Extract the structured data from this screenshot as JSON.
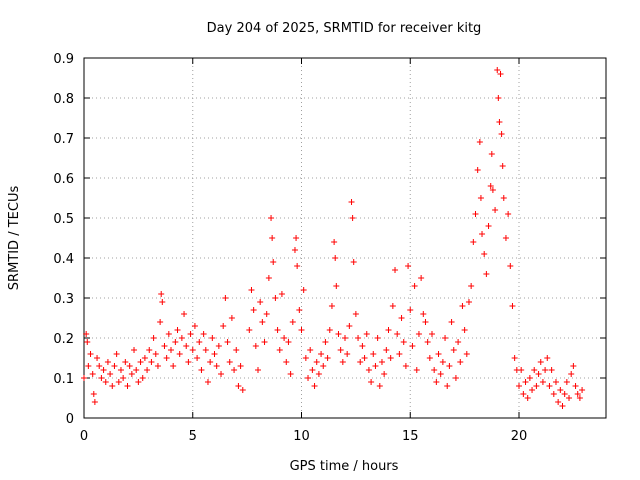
{
  "chart_data": {
    "type": "scatter",
    "title": "Day 204 of 2025, SRMTID for receiver kitg",
    "xlabel": "GPS time / hours",
    "ylabel": "SRMTID / TECUs",
    "xlim": [
      0,
      24
    ],
    "ylim": [
      0,
      0.9
    ],
    "xticks": [
      0,
      5,
      10,
      15,
      20
    ],
    "yticks": [
      0,
      0.1,
      0.2,
      0.3,
      0.4,
      0.5,
      0.6,
      0.7,
      0.8,
      0.9
    ],
    "xtick_labels": [
      "0",
      "5",
      "10",
      "15",
      "20"
    ],
    "ytick_labels": [
      "0",
      "0.1",
      "0.2",
      "0.3",
      "0.4",
      "0.5",
      "0.6",
      "0.7",
      "0.8",
      "0.9"
    ],
    "grid": true,
    "marker": "+",
    "color": "#ff0000",
    "series": [
      {
        "name": "SRMTID",
        "points": [
          [
            0.0,
            0.1
          ],
          [
            0.1,
            0.21
          ],
          [
            0.15,
            0.19
          ],
          [
            0.2,
            0.13
          ],
          [
            0.3,
            0.16
          ],
          [
            0.4,
            0.11
          ],
          [
            0.45,
            0.06
          ],
          [
            0.5,
            0.04
          ],
          [
            0.6,
            0.15
          ],
          [
            0.7,
            0.13
          ],
          [
            0.8,
            0.1
          ],
          [
            0.9,
            0.12
          ],
          [
            1.0,
            0.09
          ],
          [
            1.1,
            0.14
          ],
          [
            1.2,
            0.11
          ],
          [
            1.3,
            0.08
          ],
          [
            1.4,
            0.13
          ],
          [
            1.5,
            0.16
          ],
          [
            1.6,
            0.09
          ],
          [
            1.7,
            0.12
          ],
          [
            1.8,
            0.1
          ],
          [
            1.9,
            0.14
          ],
          [
            2.0,
            0.08
          ],
          [
            2.1,
            0.13
          ],
          [
            2.2,
            0.11
          ],
          [
            2.3,
            0.17
          ],
          [
            2.4,
            0.12
          ],
          [
            2.5,
            0.09
          ],
          [
            2.6,
            0.14
          ],
          [
            2.7,
            0.1
          ],
          [
            2.8,
            0.15
          ],
          [
            2.9,
            0.12
          ],
          [
            3.0,
            0.17
          ],
          [
            3.1,
            0.14
          ],
          [
            3.2,
            0.2
          ],
          [
            3.3,
            0.16
          ],
          [
            3.4,
            0.13
          ],
          [
            3.5,
            0.24
          ],
          [
            3.55,
            0.31
          ],
          [
            3.6,
            0.29
          ],
          [
            3.7,
            0.18
          ],
          [
            3.8,
            0.15
          ],
          [
            3.9,
            0.21
          ],
          [
            4.0,
            0.17
          ],
          [
            4.1,
            0.13
          ],
          [
            4.2,
            0.19
          ],
          [
            4.3,
            0.22
          ],
          [
            4.4,
            0.16
          ],
          [
            4.5,
            0.2
          ],
          [
            4.6,
            0.26
          ],
          [
            4.7,
            0.18
          ],
          [
            4.8,
            0.14
          ],
          [
            4.9,
            0.21
          ],
          [
            5.0,
            0.17
          ],
          [
            5.1,
            0.23
          ],
          [
            5.2,
            0.15
          ],
          [
            5.3,
            0.19
          ],
          [
            5.4,
            0.12
          ],
          [
            5.5,
            0.21
          ],
          [
            5.6,
            0.17
          ],
          [
            5.7,
            0.09
          ],
          [
            5.8,
            0.14
          ],
          [
            5.9,
            0.2
          ],
          [
            6.0,
            0.16
          ],
          [
            6.1,
            0.13
          ],
          [
            6.2,
            0.18
          ],
          [
            6.3,
            0.11
          ],
          [
            6.4,
            0.23
          ],
          [
            6.5,
            0.3
          ],
          [
            6.6,
            0.19
          ],
          [
            6.7,
            0.14
          ],
          [
            6.8,
            0.25
          ],
          [
            6.9,
            0.12
          ],
          [
            7.0,
            0.17
          ],
          [
            7.1,
            0.08
          ],
          [
            7.2,
            0.13
          ],
          [
            7.3,
            0.07
          ],
          [
            7.6,
            0.22
          ],
          [
            7.7,
            0.32
          ],
          [
            7.8,
            0.27
          ],
          [
            7.9,
            0.18
          ],
          [
            8.0,
            0.12
          ],
          [
            8.1,
            0.29
          ],
          [
            8.2,
            0.24
          ],
          [
            8.3,
            0.19
          ],
          [
            8.4,
            0.26
          ],
          [
            8.5,
            0.35
          ],
          [
            8.6,
            0.5
          ],
          [
            8.65,
            0.45
          ],
          [
            8.7,
            0.39
          ],
          [
            8.8,
            0.3
          ],
          [
            8.9,
            0.22
          ],
          [
            9.0,
            0.17
          ],
          [
            9.1,
            0.31
          ],
          [
            9.2,
            0.2
          ],
          [
            9.3,
            0.14
          ],
          [
            9.4,
            0.19
          ],
          [
            9.5,
            0.11
          ],
          [
            9.6,
            0.24
          ],
          [
            9.7,
            0.42
          ],
          [
            9.75,
            0.45
          ],
          [
            9.8,
            0.38
          ],
          [
            9.9,
            0.27
          ],
          [
            10.0,
            0.22
          ],
          [
            10.1,
            0.32
          ],
          [
            10.2,
            0.15
          ],
          [
            10.3,
            0.1
          ],
          [
            10.4,
            0.17
          ],
          [
            10.5,
            0.12
          ],
          [
            10.6,
            0.08
          ],
          [
            10.7,
            0.14
          ],
          [
            10.8,
            0.11
          ],
          [
            10.9,
            0.16
          ],
          [
            11.0,
            0.13
          ],
          [
            11.1,
            0.19
          ],
          [
            11.2,
            0.15
          ],
          [
            11.3,
            0.22
          ],
          [
            11.4,
            0.28
          ],
          [
            11.5,
            0.44
          ],
          [
            11.55,
            0.4
          ],
          [
            11.6,
            0.33
          ],
          [
            11.7,
            0.21
          ],
          [
            11.8,
            0.17
          ],
          [
            11.9,
            0.14
          ],
          [
            12.0,
            0.2
          ],
          [
            12.1,
            0.16
          ],
          [
            12.2,
            0.23
          ],
          [
            12.3,
            0.54
          ],
          [
            12.35,
            0.5
          ],
          [
            12.4,
            0.39
          ],
          [
            12.5,
            0.26
          ],
          [
            12.6,
            0.2
          ],
          [
            12.7,
            0.14
          ],
          [
            12.8,
            0.18
          ],
          [
            12.9,
            0.15
          ],
          [
            13.0,
            0.21
          ],
          [
            13.1,
            0.12
          ],
          [
            13.2,
            0.09
          ],
          [
            13.3,
            0.16
          ],
          [
            13.4,
            0.13
          ],
          [
            13.5,
            0.2
          ],
          [
            13.6,
            0.08
          ],
          [
            13.7,
            0.14
          ],
          [
            13.8,
            0.11
          ],
          [
            13.9,
            0.17
          ],
          [
            14.0,
            0.22
          ],
          [
            14.1,
            0.15
          ],
          [
            14.2,
            0.28
          ],
          [
            14.3,
            0.37
          ],
          [
            14.4,
            0.21
          ],
          [
            14.5,
            0.16
          ],
          [
            14.6,
            0.25
          ],
          [
            14.7,
            0.19
          ],
          [
            14.8,
            0.13
          ],
          [
            14.9,
            0.38
          ],
          [
            15.0,
            0.27
          ],
          [
            15.1,
            0.18
          ],
          [
            15.2,
            0.33
          ],
          [
            15.3,
            0.12
          ],
          [
            15.4,
            0.21
          ],
          [
            15.5,
            0.35
          ],
          [
            15.6,
            0.26
          ],
          [
            15.7,
            0.24
          ],
          [
            15.8,
            0.19
          ],
          [
            15.9,
            0.15
          ],
          [
            16.0,
            0.21
          ],
          [
            16.1,
            0.12
          ],
          [
            16.2,
            0.09
          ],
          [
            16.3,
            0.16
          ],
          [
            16.4,
            0.11
          ],
          [
            16.5,
            0.14
          ],
          [
            16.6,
            0.2
          ],
          [
            16.7,
            0.08
          ],
          [
            16.8,
            0.13
          ],
          [
            16.9,
            0.24
          ],
          [
            17.0,
            0.17
          ],
          [
            17.1,
            0.1
          ],
          [
            17.2,
            0.19
          ],
          [
            17.3,
            0.14
          ],
          [
            17.4,
            0.28
          ],
          [
            17.5,
            0.22
          ],
          [
            17.6,
            0.16
          ],
          [
            17.7,
            0.29
          ],
          [
            17.8,
            0.33
          ],
          [
            17.9,
            0.44
          ],
          [
            18.0,
            0.51
          ],
          [
            18.1,
            0.62
          ],
          [
            18.2,
            0.69
          ],
          [
            18.25,
            0.55
          ],
          [
            18.3,
            0.46
          ],
          [
            18.4,
            0.41
          ],
          [
            18.5,
            0.36
          ],
          [
            18.6,
            0.48
          ],
          [
            18.7,
            0.58
          ],
          [
            18.75,
            0.66
          ],
          [
            18.8,
            0.57
          ],
          [
            18.9,
            0.52
          ],
          [
            19.0,
            0.87
          ],
          [
            19.05,
            0.8
          ],
          [
            19.1,
            0.74
          ],
          [
            19.15,
            0.86
          ],
          [
            19.2,
            0.71
          ],
          [
            19.25,
            0.63
          ],
          [
            19.3,
            0.55
          ],
          [
            19.4,
            0.45
          ],
          [
            19.5,
            0.51
          ],
          [
            19.6,
            0.38
          ],
          [
            19.7,
            0.28
          ],
          [
            19.8,
            0.15
          ],
          [
            19.9,
            0.12
          ],
          [
            20.0,
            0.08
          ],
          [
            20.1,
            0.12
          ],
          [
            20.2,
            0.06
          ],
          [
            20.3,
            0.09
          ],
          [
            20.4,
            0.05
          ],
          [
            20.5,
            0.1
          ],
          [
            20.6,
            0.07
          ],
          [
            20.7,
            0.12
          ],
          [
            20.8,
            0.08
          ],
          [
            20.9,
            0.11
          ],
          [
            21.0,
            0.14
          ],
          [
            21.1,
            0.09
          ],
          [
            21.2,
            0.12
          ],
          [
            21.3,
            0.15
          ],
          [
            21.4,
            0.08
          ],
          [
            21.5,
            0.12
          ],
          [
            21.6,
            0.06
          ],
          [
            21.7,
            0.09
          ],
          [
            21.8,
            0.04
          ],
          [
            21.9,
            0.07
          ],
          [
            22.0,
            0.03
          ],
          [
            22.1,
            0.06
          ],
          [
            22.2,
            0.09
          ],
          [
            22.3,
            0.05
          ],
          [
            22.4,
            0.11
          ],
          [
            22.5,
            0.13
          ],
          [
            22.6,
            0.08
          ],
          [
            22.7,
            0.06
          ],
          [
            22.8,
            0.05
          ],
          [
            22.9,
            0.07
          ]
        ]
      }
    ]
  }
}
